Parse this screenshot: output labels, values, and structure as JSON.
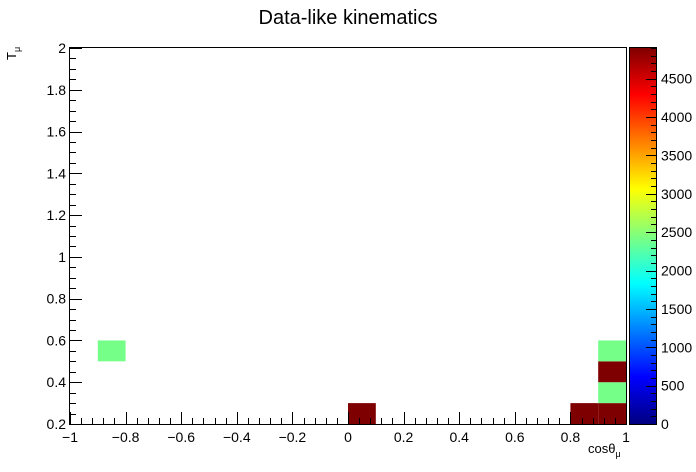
{
  "chart_data": {
    "type": "heatmap",
    "title": "Data-like kinematics",
    "xlabel": "cosθ",
    "xlabel_sub": "μ",
    "ylabel": "T",
    "ylabel_sub": "μ",
    "xlim": [
      -1,
      1
    ],
    "ylim": [
      0.2,
      2
    ],
    "x_bin_width": 0.1,
    "y_bin_width": 0.1,
    "x_ticks": [
      -1,
      -0.8,
      -0.6,
      -0.4,
      -0.2,
      0,
      0.2,
      0.4,
      0.6,
      0.8,
      1
    ],
    "x_tick_labels": [
      "−1",
      "−0.8",
      "−0.6",
      "−0.4",
      "−0.2",
      "0",
      "0.2",
      "0.4",
      "0.6",
      "0.8",
      "1"
    ],
    "y_ticks": [
      0.2,
      0.4,
      0.6,
      0.8,
      1,
      1.2,
      1.4,
      1.6,
      1.8,
      2
    ],
    "y_tick_labels": [
      "0.2",
      "0.4",
      "0.6",
      "0.8",
      "1",
      "1.2",
      "1.4",
      "1.6",
      "1.8",
      "2"
    ],
    "z_range": [
      0,
      4900
    ],
    "z_ticks": [
      0,
      500,
      1000,
      1500,
      2000,
      2500,
      3000,
      3500,
      4000,
      4500
    ],
    "z_tick_labels": [
      "0",
      "500",
      "1000",
      "1500",
      "2000",
      "2500",
      "3000",
      "3500",
      "4000",
      "4500"
    ],
    "colormap": [
      "#00007f",
      "#0000ff",
      "#007fff",
      "#00ffff",
      "#7fff7f",
      "#ffff00",
      "#ff7f00",
      "#ff0000",
      "#7f0000"
    ],
    "cells": [
      {
        "x": -0.9,
        "y": 0.5,
        "value": 2400
      },
      {
        "x": 0.0,
        "y": 0.2,
        "value": 4900
      },
      {
        "x": 0.8,
        "y": 0.2,
        "value": 4900
      },
      {
        "x": 0.9,
        "y": 0.2,
        "value": 4900
      },
      {
        "x": 0.9,
        "y": 0.3,
        "value": 2400
      },
      {
        "x": 0.9,
        "y": 0.4,
        "value": 4900
      },
      {
        "x": 0.9,
        "y": 0.5,
        "value": 2400
      }
    ]
  }
}
